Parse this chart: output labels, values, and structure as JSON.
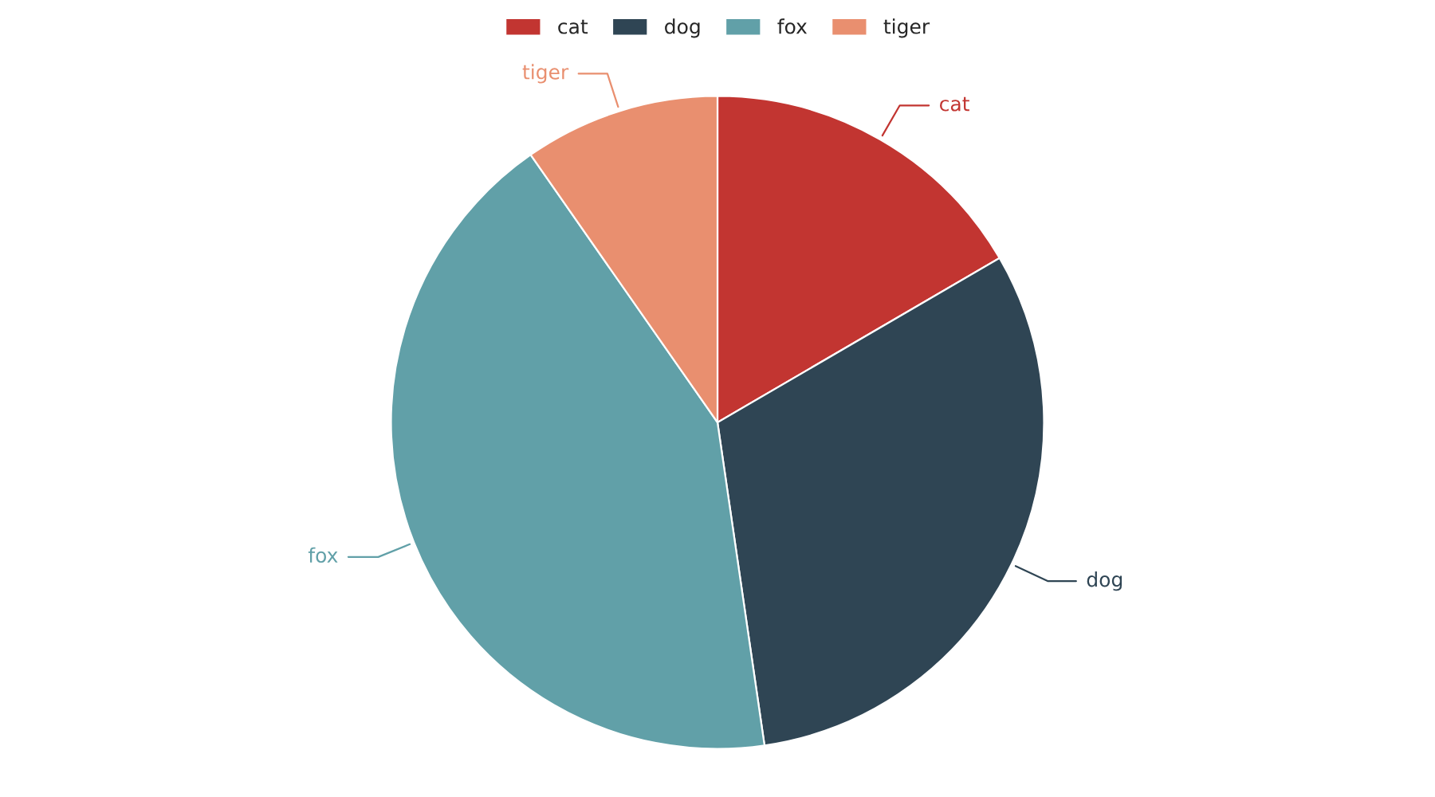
{
  "chart_data": {
    "type": "pie",
    "categories": [
      "cat",
      "dog",
      "fox",
      "tiger"
    ],
    "values": [
      16.6,
      31.1,
      42.6,
      9.7
    ],
    "colors": [
      "#c23531",
      "#2f4554",
      "#61a0a8",
      "#e98f6f"
    ],
    "legend": "top"
  }
}
